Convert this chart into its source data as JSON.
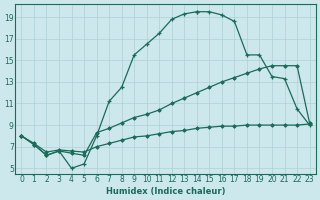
{
  "xlabel": "Humidex (Indice chaleur)",
  "bg_color": "#cce8ec",
  "grid_color": "#aed0d6",
  "line_color": "#1a6b5a",
  "xlim": [
    -0.5,
    23.5
  ],
  "ylim": [
    4.5,
    20.2
  ],
  "xticks": [
    0,
    1,
    2,
    3,
    4,
    5,
    6,
    7,
    8,
    9,
    10,
    11,
    12,
    13,
    14,
    15,
    16,
    17,
    18,
    19,
    20,
    21,
    22,
    23
  ],
  "yticks": [
    5,
    7,
    9,
    11,
    13,
    15,
    17,
    19
  ],
  "curve1_x": [
    0,
    1,
    2,
    3,
    4,
    5,
    6,
    7,
    8,
    9,
    10,
    11,
    12,
    13,
    14,
    14,
    15,
    16,
    17,
    18,
    19,
    20,
    21,
    22,
    23
  ],
  "curve1_y": [
    8.0,
    7.2,
    6.2,
    6.6,
    5.0,
    5.4,
    8.0,
    11.2,
    12.5,
    15.5,
    16.5,
    17.5,
    18.8,
    19.3,
    19.5,
    19.5,
    19.5,
    19.2,
    18.6,
    15.5,
    15.5,
    13.5,
    13.3,
    10.5,
    9.0
  ],
  "curve2_x": [
    0,
    1,
    2,
    3,
    4,
    5,
    6,
    7,
    8,
    9,
    10,
    11,
    12,
    13,
    14,
    15,
    16,
    17,
    18,
    19,
    20,
    21,
    22,
    23
  ],
  "curve2_y": [
    8.0,
    7.2,
    6.2,
    6.6,
    6.4,
    6.2,
    8.3,
    8.7,
    9.2,
    9.7,
    10.0,
    10.4,
    11.0,
    11.5,
    12.0,
    12.5,
    13.0,
    13.4,
    13.8,
    14.2,
    14.5,
    14.5,
    14.5,
    9.2
  ],
  "curve3_x": [
    0,
    1,
    2,
    3,
    4,
    5,
    6,
    7,
    8,
    9,
    10,
    11,
    12,
    13,
    14,
    15,
    16,
    17,
    18,
    19,
    20,
    21,
    22,
    23
  ],
  "curve3_y": [
    8.0,
    7.3,
    6.5,
    6.7,
    6.6,
    6.5,
    7.0,
    7.3,
    7.6,
    7.9,
    8.0,
    8.2,
    8.4,
    8.5,
    8.7,
    8.8,
    8.9,
    8.9,
    9.0,
    9.0,
    9.0,
    9.0,
    9.0,
    9.1
  ]
}
